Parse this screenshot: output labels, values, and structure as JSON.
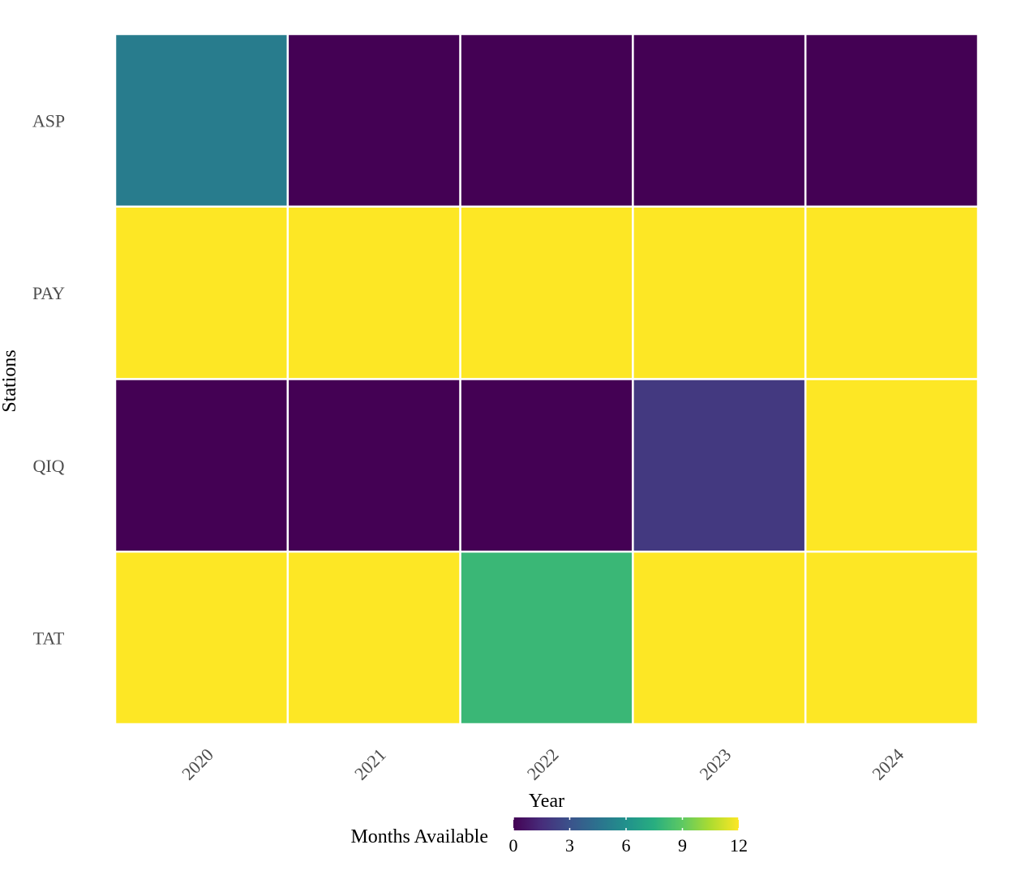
{
  "chart_data": {
    "type": "heatmap",
    "title": "",
    "xlabel": "Year",
    "ylabel": "Stations",
    "x_categories": [
      "2020",
      "2021",
      "2022",
      "2023",
      "2024"
    ],
    "y_categories": [
      "ASP",
      "PAY",
      "QIQ",
      "TAT"
    ],
    "values": [
      [
        5,
        0,
        0,
        0,
        0
      ],
      [
        12,
        12,
        12,
        12,
        12
      ],
      [
        0,
        0,
        0,
        2,
        12
      ],
      [
        12,
        12,
        8,
        12,
        12
      ]
    ],
    "colorscale": "viridis",
    "value_range": [
      0,
      12
    ],
    "legend": {
      "title": "Months Available",
      "ticks": [
        0,
        3,
        6,
        9,
        12
      ],
      "tick_labels": [
        "0",
        "3",
        "6",
        "9",
        "12"
      ],
      "position": "bottom"
    },
    "grid": false,
    "x_tick_rotation": "45-degree"
  }
}
